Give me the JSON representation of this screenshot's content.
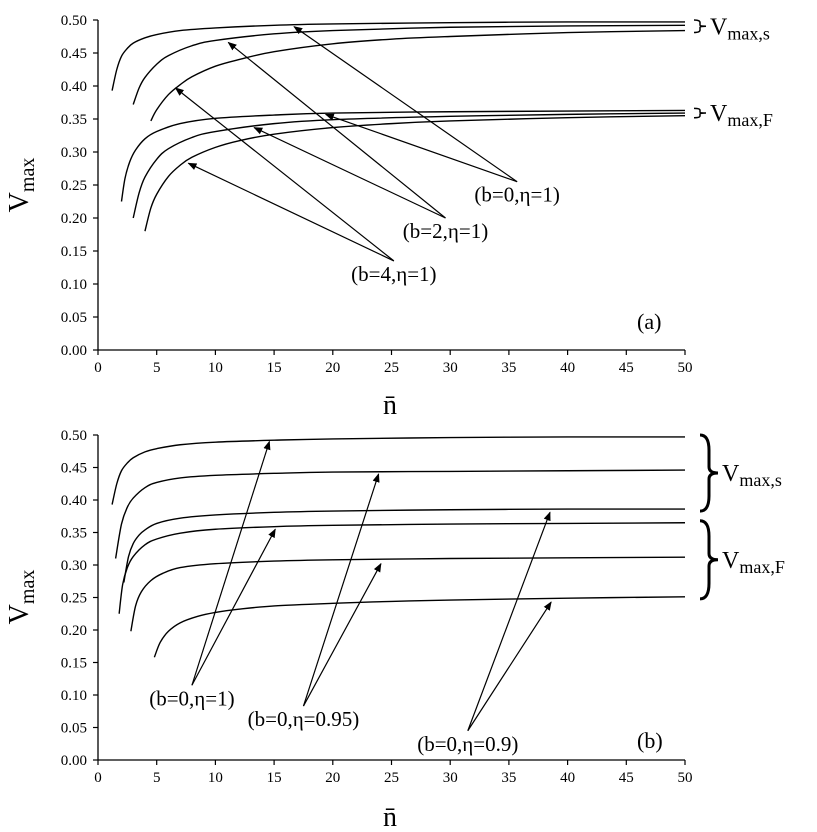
{
  "chart_data": [
    {
      "type": "line",
      "panel_label": "(a)",
      "xlabel": "n̄",
      "ylabel": "V",
      "ylabel_sub": "max",
      "xlim": [
        0,
        50
      ],
      "ylim": [
        0,
        0.5
      ],
      "x_ticks": [
        "0",
        "5",
        "10",
        "15",
        "20",
        "25",
        "30",
        "35",
        "40",
        "45",
        "50"
      ],
      "y_ticks": [
        "0.00",
        "0.05",
        "0.10",
        "0.15",
        "0.20",
        "0.25",
        "0.30",
        "0.35",
        "0.40",
        "0.45",
        "0.50"
      ],
      "grid": false,
      "series": [
        {
          "group": "s",
          "x": [
            1.2,
            1.6,
            2.0,
            2.5,
            3,
            4,
            5,
            7,
            10,
            15,
            20,
            30,
            40,
            50
          ],
          "y": [
            0.393,
            0.425,
            0.445,
            0.457,
            0.465,
            0.473,
            0.478,
            0.484,
            0.488,
            0.492,
            0.494,
            0.496,
            0.497,
            0.497
          ]
        },
        {
          "group": "s",
          "x": [
            3.0,
            3.5,
            4,
            5,
            6,
            8,
            10,
            15,
            20,
            30,
            40,
            50
          ],
          "y": [
            0.372,
            0.397,
            0.413,
            0.433,
            0.446,
            0.461,
            0.469,
            0.479,
            0.484,
            0.489,
            0.491,
            0.492
          ]
        },
        {
          "group": "s",
          "x": [
            4.5,
            5,
            6,
            7,
            8,
            10,
            12,
            15,
            20,
            25,
            30,
            40,
            50
          ],
          "y": [
            0.347,
            0.364,
            0.387,
            0.402,
            0.414,
            0.43,
            0.44,
            0.452,
            0.464,
            0.471,
            0.475,
            0.481,
            0.484
          ]
        },
        {
          "group": "F",
          "x": [
            2.0,
            2.3,
            2.7,
            3.2,
            4,
            5,
            7,
            10,
            15,
            20,
            30,
            40,
            50
          ],
          "y": [
            0.225,
            0.26,
            0.285,
            0.303,
            0.32,
            0.331,
            0.343,
            0.351,
            0.356,
            0.359,
            0.361,
            0.362,
            0.363
          ]
        },
        {
          "group": "F",
          "x": [
            3.0,
            3.5,
            4,
            5,
            6,
            8,
            10,
            15,
            20,
            30,
            40,
            50
          ],
          "y": [
            0.2,
            0.238,
            0.262,
            0.289,
            0.305,
            0.322,
            0.331,
            0.343,
            0.349,
            0.354,
            0.357,
            0.359
          ]
        },
        {
          "group": "F",
          "x": [
            4.0,
            4.5,
            5,
            6,
            7,
            8,
            10,
            12,
            15,
            20,
            25,
            30,
            40,
            50
          ],
          "y": [
            0.18,
            0.215,
            0.236,
            0.263,
            0.28,
            0.292,
            0.307,
            0.317,
            0.327,
            0.337,
            0.343,
            0.347,
            0.352,
            0.355
          ]
        }
      ],
      "group_labels": [
        {
          "main": "V",
          "sub": "max,s"
        },
        {
          "main": "V",
          "sub": "max,F"
        }
      ],
      "annotations": [
        {
          "text": "(b=0,η=1)",
          "x": 35.7,
          "y": 0.255,
          "targets": [
            [
              16.7,
              0.49
            ],
            [
              19.4,
              0.357
            ]
          ]
        },
        {
          "text": "(b=2,η=1)",
          "x": 29.6,
          "y": 0.2,
          "targets": [
            [
              11.1,
              0.466
            ],
            [
              13.3,
              0.337
            ]
          ]
        },
        {
          "text": "(b=4,η=1)",
          "x": 25.2,
          "y": 0.135,
          "targets": [
            [
              6.6,
              0.397
            ],
            [
              7.7,
              0.283
            ]
          ]
        }
      ]
    },
    {
      "type": "line",
      "panel_label": "(b)",
      "xlabel": "n̄",
      "ylabel": "V",
      "ylabel_sub": "max",
      "xlim": [
        0,
        50
      ],
      "ylim": [
        0,
        0.5
      ],
      "x_ticks": [
        "0",
        "5",
        "10",
        "15",
        "20",
        "25",
        "30",
        "35",
        "40",
        "45",
        "50"
      ],
      "y_ticks": [
        "0.00",
        "0.05",
        "0.10",
        "0.15",
        "0.20",
        "0.25",
        "0.30",
        "0.35",
        "0.40",
        "0.45",
        "0.50"
      ],
      "grid": false,
      "series": [
        {
          "group": "s",
          "x": [
            1.2,
            1.6,
            2.0,
            2.5,
            3,
            4,
            5,
            7,
            10,
            15,
            20,
            30,
            40,
            50
          ],
          "y": [
            0.393,
            0.425,
            0.445,
            0.457,
            0.465,
            0.474,
            0.479,
            0.485,
            0.489,
            0.492,
            0.494,
            0.496,
            0.497,
            0.497
          ]
        },
        {
          "group": "s",
          "x": [
            1.5,
            2,
            2.5,
            3,
            4,
            5,
            7,
            10,
            15,
            20,
            30,
            40,
            50
          ],
          "y": [
            0.31,
            0.363,
            0.389,
            0.403,
            0.419,
            0.427,
            0.434,
            0.438,
            0.441,
            0.443,
            0.444,
            0.445,
            0.446
          ]
        },
        {
          "group": "s",
          "x": [
            2.2,
            2.6,
            3,
            3.5,
            4,
            5,
            7,
            10,
            15,
            20,
            30,
            40,
            50
          ],
          "y": [
            0.273,
            0.313,
            0.333,
            0.346,
            0.354,
            0.364,
            0.372,
            0.377,
            0.381,
            0.383,
            0.385,
            0.386,
            0.386
          ]
        },
        {
          "group": "F",
          "x": [
            1.8,
            2.1,
            2.5,
            3,
            4,
            5,
            7,
            10,
            15,
            20,
            30,
            40,
            50
          ],
          "y": [
            0.225,
            0.27,
            0.296,
            0.313,
            0.331,
            0.34,
            0.349,
            0.355,
            0.359,
            0.361,
            0.363,
            0.364,
            0.365
          ]
        },
        {
          "group": "F",
          "x": [
            2.8,
            3.2,
            3.7,
            4.5,
            5.5,
            7,
            10,
            15,
            20,
            30,
            40,
            50
          ],
          "y": [
            0.198,
            0.237,
            0.259,
            0.276,
            0.287,
            0.296,
            0.302,
            0.306,
            0.308,
            0.31,
            0.311,
            0.312
          ]
        },
        {
          "group": "F",
          "x": [
            4.8,
            5.3,
            6,
            7,
            8.5,
            10,
            12,
            15,
            20,
            25,
            30,
            40,
            50
          ],
          "y": [
            0.158,
            0.181,
            0.198,
            0.211,
            0.221,
            0.227,
            0.232,
            0.237,
            0.241,
            0.244,
            0.246,
            0.249,
            0.251
          ]
        }
      ],
      "group_labels": [
        {
          "main": "V",
          "sub": "max,s"
        },
        {
          "main": "V",
          "sub": "max,F"
        }
      ],
      "annotations": [
        {
          "text": "(b=0,η=1)",
          "x": 8,
          "y": 0.115,
          "targets": [
            [
              14.6,
              0.49
            ],
            [
              15.1,
              0.355
            ]
          ]
        },
        {
          "text": "(b=0,η=0.95)",
          "x": 17.5,
          "y": 0.083,
          "targets": [
            [
              23.9,
              0.44
            ],
            [
              24.1,
              0.302
            ]
          ]
        },
        {
          "text": "(b=0,η=0.9)",
          "x": 31.5,
          "y": 0.045,
          "targets": [
            [
              38.5,
              0.381
            ],
            [
              38.6,
              0.243
            ]
          ]
        }
      ]
    }
  ]
}
